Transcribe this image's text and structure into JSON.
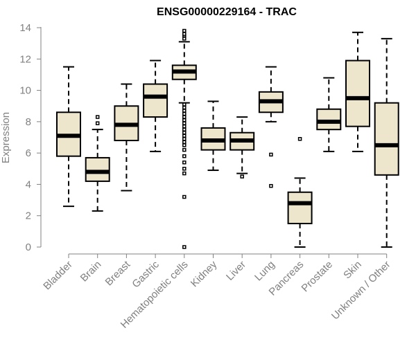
{
  "chart_data": {
    "type": "boxplot",
    "title": "ENSG00000229164 - TRAC",
    "xlabel": "",
    "ylabel": "Expression",
    "ylim": [
      0,
      14
    ],
    "yticks": [
      0,
      2,
      4,
      6,
      8,
      10,
      12,
      14
    ],
    "grid": false,
    "box_fill": "#ede6cd",
    "box_stroke": "#000000",
    "axis_color": "#808080",
    "categories": [
      "Bladder",
      "Brain",
      "Breast",
      "Gastric",
      "Hematopoietic cells",
      "Kidney",
      "Liver",
      "Lung",
      "Pancreas",
      "Prostate",
      "Skin",
      "Unknown / Other"
    ],
    "boxes": [
      {
        "category": "Bladder",
        "min": 2.6,
        "q1": 5.8,
        "median": 7.1,
        "q3": 8.6,
        "max": 11.5,
        "outliers": []
      },
      {
        "category": "Brain",
        "min": 2.3,
        "q1": 4.2,
        "median": 4.8,
        "q3": 5.7,
        "max": 7.5,
        "outliers": [
          7.9,
          8.3
        ]
      },
      {
        "category": "Breast",
        "min": 3.6,
        "q1": 6.8,
        "median": 7.8,
        "q3": 9.0,
        "max": 10.4,
        "outliers": []
      },
      {
        "category": "Gastric",
        "min": 6.1,
        "q1": 8.3,
        "median": 9.6,
        "q3": 10.4,
        "max": 11.9,
        "outliers": []
      },
      {
        "category": "Hematopoietic cells",
        "min": 9.2,
        "q1": 10.7,
        "median": 11.2,
        "q3": 11.6,
        "max": 13.1,
        "outliers": [
          13.3,
          13.5,
          13.6,
          13.8,
          9.1,
          8.9,
          8.7,
          8.5,
          8.3,
          8.1,
          7.9,
          7.7,
          7.5,
          7.3,
          7.1,
          6.9,
          6.7,
          6.5,
          6.2,
          5.8,
          5.4,
          5.0,
          4.7,
          3.2,
          0.0
        ]
      },
      {
        "category": "Kidney",
        "min": 4.9,
        "q1": 6.2,
        "median": 6.8,
        "q3": 7.6,
        "max": 9.3,
        "outliers": []
      },
      {
        "category": "Liver",
        "min": 4.7,
        "q1": 6.2,
        "median": 6.8,
        "q3": 7.3,
        "max": 8.3,
        "outliers": [
          4.5
        ]
      },
      {
        "category": "Lung",
        "min": 8.0,
        "q1": 8.6,
        "median": 9.3,
        "q3": 9.9,
        "max": 11.5,
        "outliers": [
          5.9,
          3.9
        ]
      },
      {
        "category": "Pancreas",
        "min": 0.0,
        "q1": 1.5,
        "median": 2.8,
        "q3": 3.5,
        "max": 4.4,
        "outliers": [
          6.9
        ]
      },
      {
        "category": "Prostate",
        "min": 6.1,
        "q1": 7.5,
        "median": 8.0,
        "q3": 8.8,
        "max": 10.8,
        "outliers": []
      },
      {
        "category": "Skin",
        "min": 6.1,
        "q1": 7.7,
        "median": 9.5,
        "q3": 11.9,
        "max": 13.7,
        "outliers": []
      },
      {
        "category": "Unknown / Other",
        "min": 0.0,
        "q1": 4.6,
        "median": 6.5,
        "q3": 9.2,
        "max": 13.3,
        "outliers": []
      }
    ]
  }
}
